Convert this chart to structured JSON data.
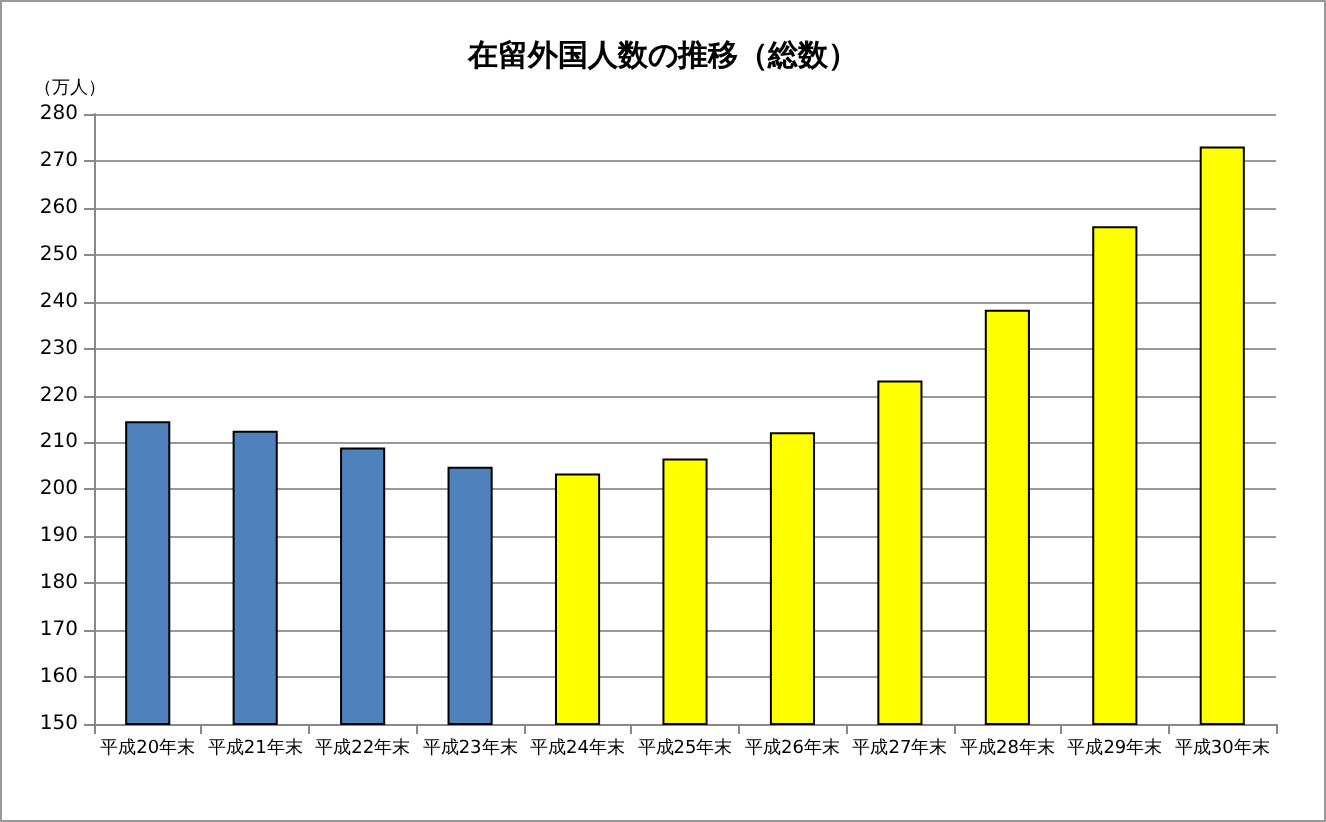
{
  "chart_data": {
    "type": "bar",
    "title": "在留外国人数の推移（総数）",
    "ylabel": "（万人）",
    "categories": [
      "平成20年末",
      "平成21年末",
      "平成22年末",
      "平成23年末",
      "平成24年末",
      "平成25年末",
      "平成26年末",
      "平成27年末",
      "平成28年末",
      "平成29年末",
      "平成30年末"
    ],
    "values": [
      214.5,
      212.5,
      208.9,
      204.8,
      203.4,
      206.6,
      212.2,
      223.2,
      238.3,
      256.1,
      273.1
    ],
    "colors": [
      "#4f81bd",
      "#4f81bd",
      "#4f81bd",
      "#4f81bd",
      "#ffff00",
      "#ffff00",
      "#ffff00",
      "#ffff00",
      "#ffff00",
      "#ffff00",
      "#ffff00"
    ],
    "ylim": [
      150,
      280
    ],
    "yticks": [
      150,
      160,
      170,
      180,
      190,
      200,
      210,
      220,
      230,
      240,
      250,
      260,
      270,
      280
    ],
    "grid": "y"
  }
}
